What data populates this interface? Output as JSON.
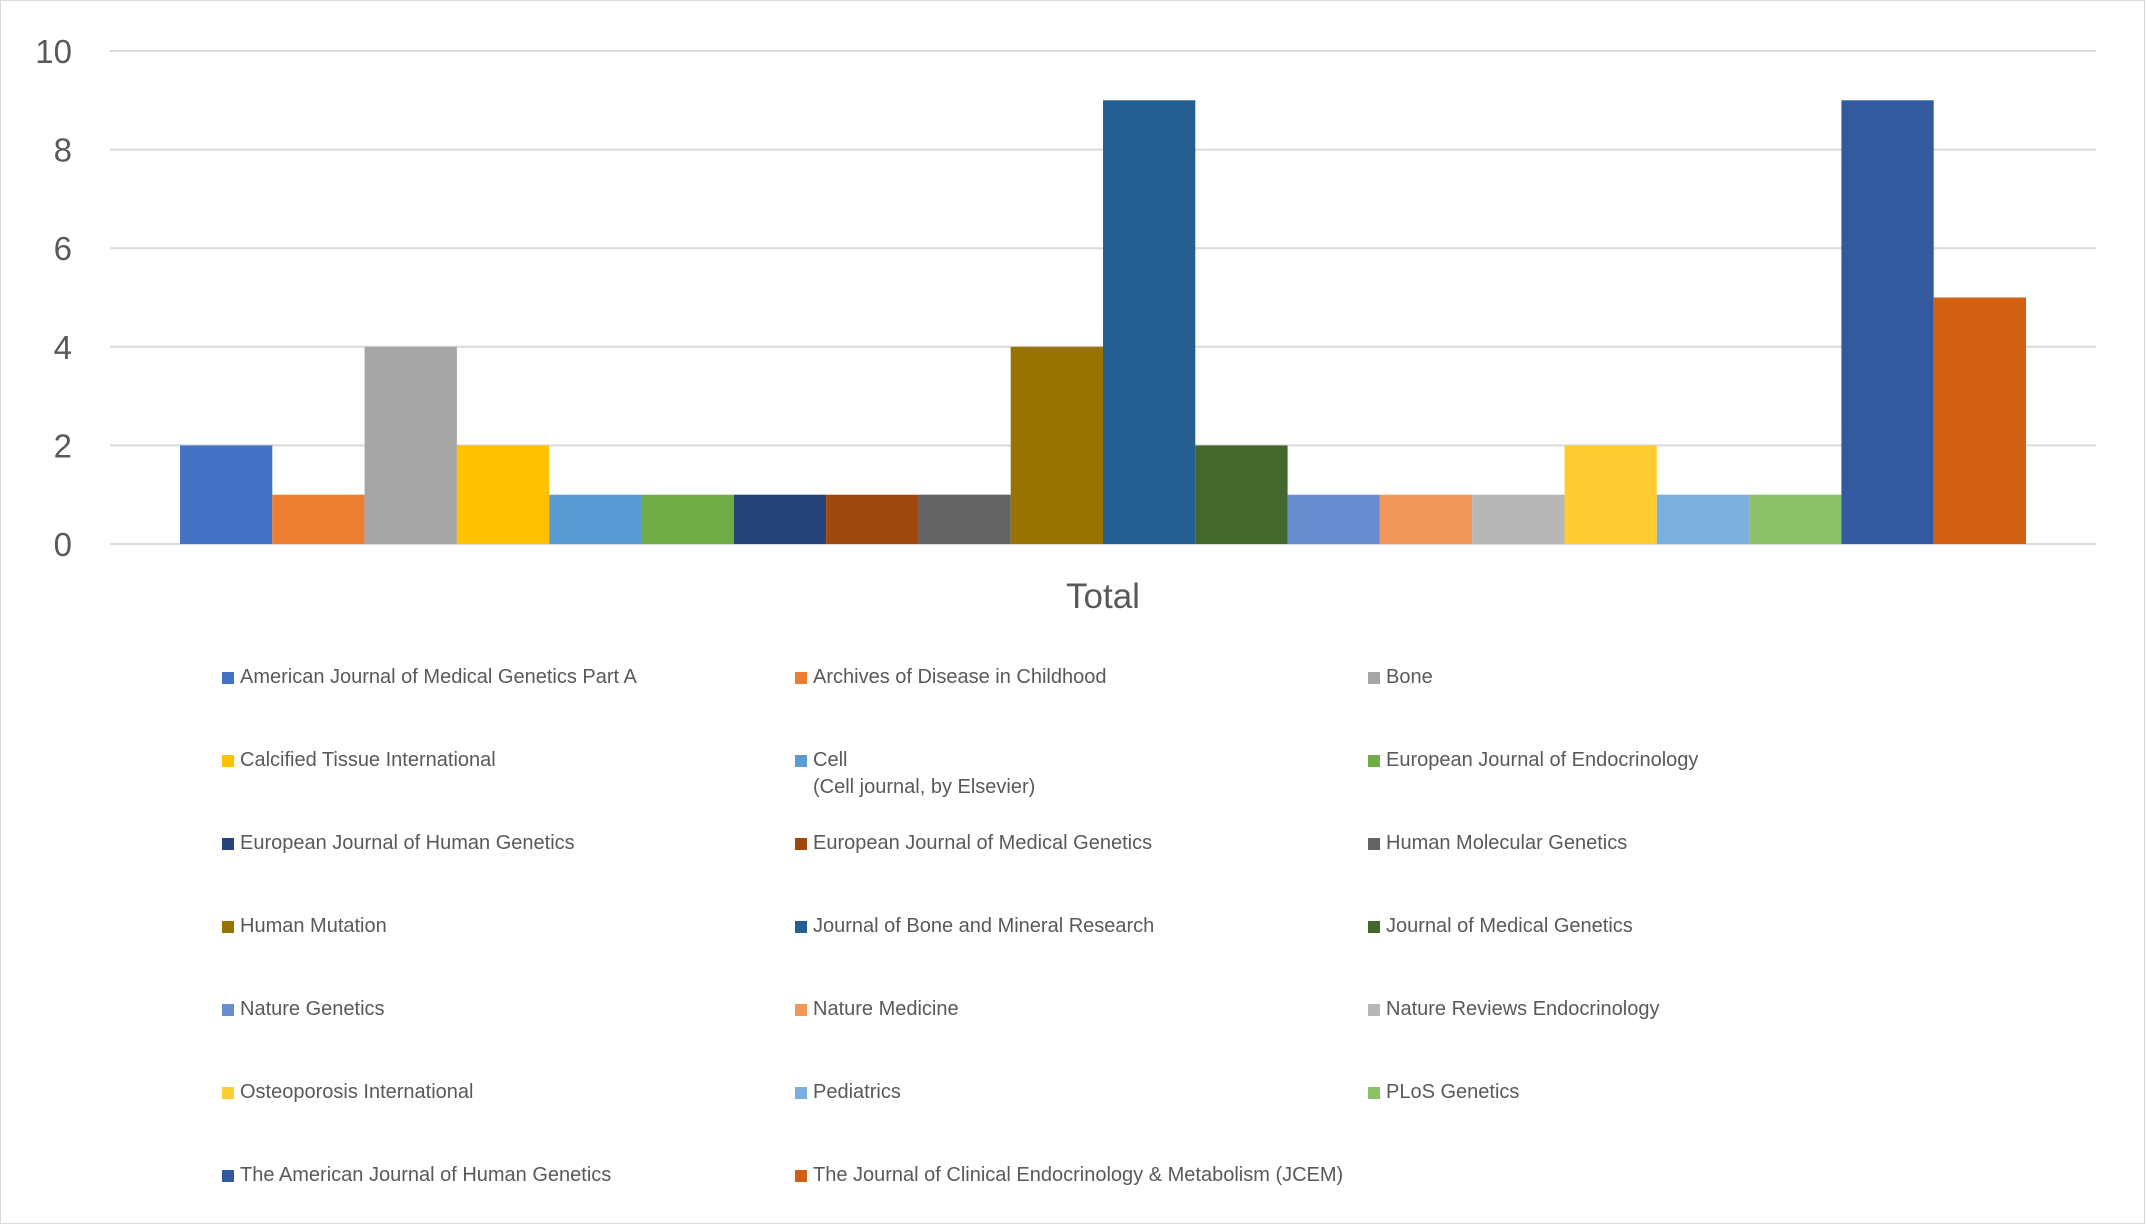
{
  "chart_data": {
    "type": "bar",
    "categories": [
      "Total"
    ],
    "ylim": [
      0,
      10
    ],
    "yticks": [
      0,
      2,
      4,
      6,
      8,
      10
    ],
    "grid": true,
    "legend_position": "bottom",
    "series": [
      {
        "name": "American Journal of Medical Genetics Part A",
        "values": [
          2
        ],
        "color": "#4472C4"
      },
      {
        "name": "Archives of Disease in Childhood",
        "values": [
          1
        ],
        "color": "#ED7D31"
      },
      {
        "name": "Bone",
        "values": [
          4
        ],
        "color": "#A5A5A5"
      },
      {
        "name": "Calcified Tissue International",
        "values": [
          2
        ],
        "color": "#FFC000"
      },
      {
        "name": "Cell\n(Cell journal, by Elsevier)",
        "values": [
          1
        ],
        "color": "#5B9BD5"
      },
      {
        "name": "European Journal of Endocrinology",
        "values": [
          1
        ],
        "color": "#70AD47"
      },
      {
        "name": "European Journal of Human Genetics",
        "values": [
          1
        ],
        "color": "#264478"
      },
      {
        "name": "European Journal of Medical Genetics",
        "values": [
          1
        ],
        "color": "#9E480E"
      },
      {
        "name": "Human Molecular Genetics",
        "values": [
          1
        ],
        "color": "#636363"
      },
      {
        "name": "Human Mutation",
        "values": [
          4
        ],
        "color": "#997300"
      },
      {
        "name": "Journal of Bone and Mineral Research",
        "values": [
          9
        ],
        "color": "#255E91"
      },
      {
        "name": "Journal of Medical Genetics",
        "values": [
          2
        ],
        "color": "#43682B"
      },
      {
        "name": "Nature Genetics",
        "values": [
          1
        ],
        "color": "#698ED0"
      },
      {
        "name": "Nature Medicine",
        "values": [
          1
        ],
        "color": "#F1975A"
      },
      {
        "name": "Nature Reviews Endocrinology",
        "values": [
          1
        ],
        "color": "#B7B7B7"
      },
      {
        "name": "Osteoporosis International",
        "values": [
          2
        ],
        "color": "#FFCD33"
      },
      {
        "name": "Pediatrics",
        "values": [
          1
        ],
        "color": "#7CAFDD"
      },
      {
        "name": "PLoS Genetics",
        "values": [
          1
        ],
        "color": "#8CC168"
      },
      {
        "name": "The American Journal of Human Genetics",
        "values": [
          9
        ],
        "color": "#335AA1"
      },
      {
        "name": "The Journal of Clinical Endocrinology & Metabolism (JCEM)",
        "values": [
          5
        ],
        "color": "#D26012"
      }
    ]
  }
}
